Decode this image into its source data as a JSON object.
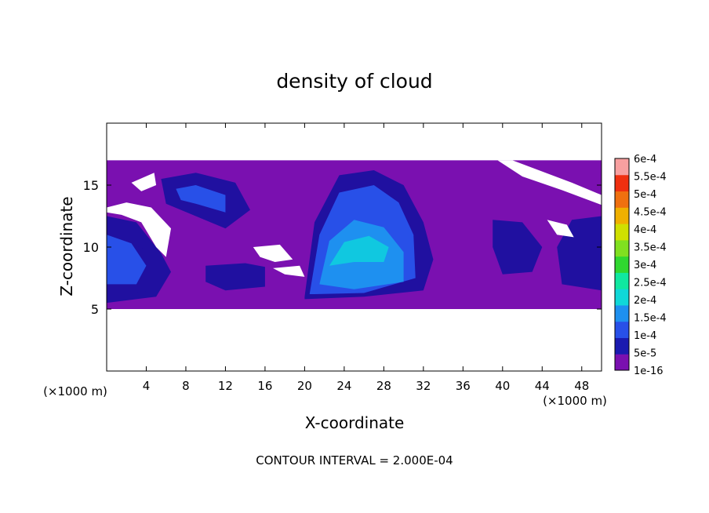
{
  "chart_data": {
    "type": "heatmap",
    "title": "density of cloud",
    "xlabel": "X-coordinate",
    "ylabel": "Z-coordinate",
    "x_unit": "(×1000 m)",
    "x_unit_right": "(×1000 m)",
    "xlim": [
      0,
      50
    ],
    "ylim": [
      0,
      20
    ],
    "x_ticks": [
      4,
      8,
      12,
      16,
      20,
      24,
      28,
      32,
      36,
      40,
      44,
      48
    ],
    "y_ticks": [
      5,
      10,
      15
    ],
    "footer": "CONTOUR INTERVAL = 2.000E-04",
    "colorbar": {
      "labels": [
        "1e-16",
        "5e-5",
        "1e-4",
        "1.5e-4",
        "2e-4",
        "2.5e-4",
        "3e-4",
        "3.5e-4",
        "4e-4",
        "4.5e-4",
        "5e-4",
        "5.5e-4",
        "6e-4"
      ],
      "colors": [
        "#7a10b0",
        "#1a1ab0",
        "#2850e8",
        "#1e90f0",
        "#10d8d8",
        "#10e8a0",
        "#30d830",
        "#80e020",
        "#d0e000",
        "#f0b000",
        "#f07010",
        "#f03010",
        "#f8a0a0"
      ]
    },
    "layers": [
      {
        "level": "1e-16",
        "color": "#7a10b0",
        "regions": [
          {
            "name": "cloud-band",
            "points": [
              [
                0,
                17
              ],
              [
                50,
                17
              ],
              [
                50,
                5
              ],
              [
                0,
                5
              ]
            ]
          }
        ]
      },
      {
        "level": "5e-5",
        "color": "#2010a0",
        "regions": [
          {
            "name": "left-cell",
            "points": [
              [
                0,
                12.5
              ],
              [
                3,
                12
              ],
              [
                5.5,
                9.5
              ],
              [
                6.5,
                8
              ],
              [
                5,
                6
              ],
              [
                0,
                5.5
              ]
            ]
          },
          {
            "name": "upper-left-cell",
            "points": [
              [
                5.5,
                15.5
              ],
              [
                9,
                16
              ],
              [
                13,
                15.2
              ],
              [
                14.5,
                13
              ],
              [
                12,
                11.5
              ],
              [
                9,
                12.5
              ],
              [
                6,
                13.5
              ]
            ]
          },
          {
            "name": "lower-mid-cell",
            "points": [
              [
                10,
                8.5
              ],
              [
                14,
                8.7
              ],
              [
                16,
                8.4
              ],
              [
                16,
                6.8
              ],
              [
                12,
                6.5
              ],
              [
                10,
                7.2
              ]
            ]
          },
          {
            "name": "central-cell",
            "points": [
              [
                20,
                6
              ],
              [
                21,
                12
              ],
              [
                23.5,
                15.8
              ],
              [
                27,
                16.2
              ],
              [
                30,
                15
              ],
              [
                32,
                12
              ],
              [
                33,
                9
              ],
              [
                32,
                6.5
              ],
              [
                26,
                6
              ],
              [
                20,
                5.8
              ]
            ]
          },
          {
            "name": "right-cell-a",
            "points": [
              [
                39,
                12.2
              ],
              [
                42,
                12
              ],
              [
                44,
                10
              ],
              [
                43,
                8
              ],
              [
                40,
                7.8
              ],
              [
                39,
                10
              ]
            ]
          },
          {
            "name": "right-cell-b",
            "points": [
              [
                45.5,
                10
              ],
              [
                47,
                12.2
              ],
              [
                50,
                12.5
              ],
              [
                50,
                6.5
              ],
              [
                46,
                7
              ]
            ]
          },
          {
            "name": "left-bottom-cell",
            "points": [
              [
                1.5,
                10.5
              ],
              [
                4,
                9.8
              ],
              [
                6,
                8
              ],
              [
                5,
                6.5
              ],
              [
                1,
                6.2
              ]
            ]
          }
        ]
      },
      {
        "level": "1e-4",
        "color": "#2850e8",
        "regions": [
          {
            "name": "central-core",
            "points": [
              [
                20.5,
                6.2
              ],
              [
                21.5,
                11
              ],
              [
                23.5,
                14.4
              ],
              [
                27,
                15
              ],
              [
                29.5,
                13.6
              ],
              [
                31,
                11
              ],
              [
                31.2,
                7.5
              ],
              [
                26,
                6.3
              ],
              [
                21,
                6.2
              ]
            ]
          },
          {
            "name": "upper-left-core",
            "points": [
              [
                7,
                14.7
              ],
              [
                9,
                15
              ],
              [
                12,
                14.2
              ],
              [
                12,
                12.8
              ],
              [
                9,
                13.5
              ],
              [
                7.5,
                13.8
              ]
            ]
          },
          {
            "name": "left-core",
            "points": [
              [
                0,
                11
              ],
              [
                2.5,
                10.3
              ],
              [
                4,
                8.5
              ],
              [
                3,
                7
              ],
              [
                0,
                7
              ]
            ]
          }
        ]
      },
      {
        "level": "1.5e-4",
        "color": "#1e90f0",
        "regions": [
          {
            "name": "central-bright",
            "points": [
              [
                21.5,
                7
              ],
              [
                22.5,
                10.5
              ],
              [
                25,
                12.2
              ],
              [
                28,
                11.6
              ],
              [
                30,
                9.6
              ],
              [
                30,
                7.2
              ],
              [
                25,
                6.6
              ]
            ]
          }
        ]
      },
      {
        "level": "2e-4",
        "color": "#10c8e0",
        "regions": [
          {
            "name": "central-peak",
            "points": [
              [
                22.5,
                8.5
              ],
              [
                24,
                10.4
              ],
              [
                26.5,
                10.9
              ],
              [
                28.5,
                10
              ],
              [
                28,
                8.8
              ],
              [
                25,
                8.8
              ]
            ]
          }
        ]
      },
      {
        "level": "clear-air",
        "color": "#ffffff",
        "regions": [
          {
            "name": "gap-upper-left",
            "points": [
              [
                0,
                13.2
              ],
              [
                2,
                13.6
              ],
              [
                4.5,
                13.2
              ],
              [
                6.5,
                11.5
              ],
              [
                6,
                9.2
              ],
              [
                5,
                10
              ],
              [
                3.5,
                12
              ],
              [
                1.5,
                12.6
              ],
              [
                0,
                12.8
              ]
            ]
          },
          {
            "name": "gap-small-left",
            "points": [
              [
                2.5,
                15.2
              ],
              [
                4.8,
                16
              ],
              [
                5,
                15
              ],
              [
                3.5,
                14.5
              ]
            ]
          },
          {
            "name": "gap-top-right",
            "points": [
              [
                39.5,
                17
              ],
              [
                42,
                15.7
              ],
              [
                46,
                14.6
              ],
              [
                50,
                13.4
              ],
              [
                50,
                14.2
              ],
              [
                47,
                15.2
              ],
              [
                43,
                16.4
              ],
              [
                41,
                17
              ]
            ]
          },
          {
            "name": "gap-right",
            "points": [
              [
                44.5,
                12.2
              ],
              [
                46.5,
                11.8
              ],
              [
                47.2,
                10.8
              ],
              [
                45.5,
                11
              ]
            ]
          },
          {
            "name": "gap-mid",
            "points": [
              [
                14.8,
                10
              ],
              [
                17.5,
                10.2
              ],
              [
                18.8,
                9
              ],
              [
                17,
                8.8
              ],
              [
                15.5,
                9.2
              ]
            ]
          },
          {
            "name": "gap-mid-2",
            "points": [
              [
                16.8,
                8.3
              ],
              [
                19.5,
                8.5
              ],
              [
                20,
                7.6
              ],
              [
                18,
                7.8
              ]
            ]
          }
        ]
      }
    ]
  }
}
